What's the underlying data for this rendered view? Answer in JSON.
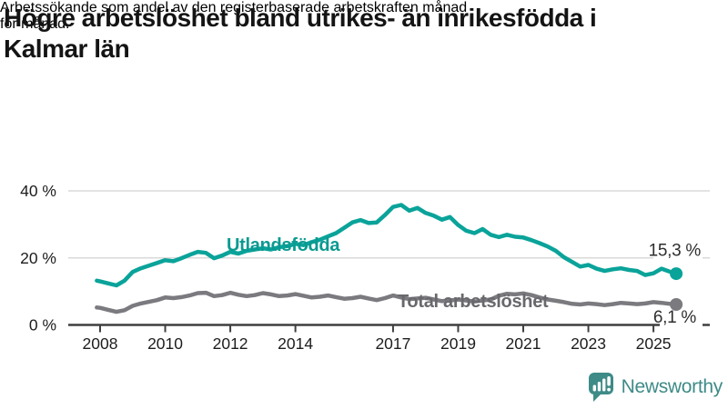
{
  "header": {
    "title_line1": "Högre arbetslöshet bland utrikes- än inrikesfödda i",
    "title_line2": "Kalmar län",
    "subtitle_line1": "Arbetssökande som andel av den registerbaserade arbetskraften månad",
    "subtitle_line2": "för månad."
  },
  "chart_data": {
    "type": "line",
    "title": "Högre arbetslöshet bland utrikes- än inrikesfödda i Kalmar län",
    "subtitle": "Arbetssökande som andel av den registerbaserade arbetskraften månad för månad.",
    "x_unit": "decimal_year",
    "xlim": [
      2007.9,
      2025.9
    ],
    "ylim": [
      0,
      40
    ],
    "grid": "horizontal",
    "legend_position": "inline-labels",
    "y_ticks": [
      0,
      20,
      40
    ],
    "y_tick_labels": [
      "0 %",
      "20 %",
      "40 %"
    ],
    "x_ticks": [
      2008,
      2010,
      2012,
      2014,
      2017,
      2019,
      2021,
      2023,
      2025
    ],
    "x_tick_labels": [
      "2008",
      "2010",
      "2012",
      "2014",
      "2017",
      "2019",
      "2021",
      "2023",
      "2025"
    ],
    "x": [
      2007.9,
      2008,
      2008.25,
      2008.5,
      2008.75,
      2009,
      2009.25,
      2009.5,
      2009.75,
      2010,
      2010.25,
      2010.5,
      2010.75,
      2011,
      2011.25,
      2011.5,
      2011.75,
      2012,
      2012.25,
      2012.5,
      2012.75,
      2013,
      2013.25,
      2013.5,
      2013.75,
      2014,
      2014.25,
      2014.5,
      2014.75,
      2015,
      2015.25,
      2015.5,
      2015.75,
      2016,
      2016.25,
      2016.5,
      2016.75,
      2017,
      2017.25,
      2017.5,
      2017.75,
      2018,
      2018.25,
      2018.5,
      2018.75,
      2019,
      2019.25,
      2019.5,
      2019.75,
      2020,
      2020.25,
      2020.5,
      2020.75,
      2021,
      2021.25,
      2021.5,
      2021.75,
      2022,
      2022.25,
      2022.5,
      2022.75,
      2023,
      2023.25,
      2023.5,
      2023.75,
      2024,
      2024.25,
      2024.5,
      2024.75,
      2025,
      2025.25,
      2025.5,
      2025.7
    ],
    "series": [
      {
        "name": "Utlandsfödda",
        "color": "#0aa39a",
        "label_color": "#0a9a91",
        "end_label": "15,3 %",
        "end_value": 15.3,
        "values": [
          13.2,
          13.0,
          12.4,
          11.8,
          13.2,
          15.8,
          16.9,
          17.7,
          18.5,
          19.3,
          19.0,
          19.9,
          20.9,
          21.8,
          21.5,
          19.9,
          20.7,
          21.8,
          21.3,
          22.1,
          22.5,
          22.9,
          22.5,
          23.2,
          23.5,
          24.2,
          23.8,
          24.7,
          25.4,
          26.4,
          27.4,
          29.0,
          30.6,
          31.3,
          30.4,
          30.6,
          32.8,
          35.2,
          35.8,
          34.1,
          34.9,
          33.4,
          32.6,
          31.4,
          32.2,
          29.8,
          28.1,
          27.4,
          28.6,
          26.9,
          26.2,
          26.9,
          26.3,
          26.1,
          25.3,
          24.4,
          23.4,
          22.1,
          20.2,
          18.8,
          17.4,
          17.9,
          16.8,
          16.1,
          16.6,
          16.9,
          16.4,
          16.1,
          14.9,
          15.4,
          16.8,
          15.9,
          15.3
        ]
      },
      {
        "name": "Total arbetslöshet",
        "color": "#7a7a7f",
        "label_color": "#68686d",
        "end_label": "6,1 %",
        "end_value": 6.1,
        "values": [
          5.2,
          5.1,
          4.5,
          3.9,
          4.4,
          5.7,
          6.4,
          6.9,
          7.4,
          8.2,
          8.0,
          8.3,
          8.8,
          9.5,
          9.6,
          8.6,
          8.9,
          9.6,
          9.0,
          8.6,
          8.9,
          9.5,
          9.1,
          8.6,
          8.8,
          9.2,
          8.7,
          8.2,
          8.4,
          8.8,
          8.3,
          7.8,
          8.0,
          8.4,
          7.9,
          7.4,
          8.0,
          8.8,
          8.2,
          7.7,
          7.9,
          8.1,
          7.6,
          7.1,
          7.3,
          7.6,
          7.3,
          7.0,
          7.3,
          7.6,
          8.7,
          9.3,
          9.1,
          9.4,
          8.9,
          8.2,
          7.6,
          7.2,
          6.8,
          6.3,
          6.1,
          6.4,
          6.2,
          5.9,
          6.2,
          6.6,
          6.4,
          6.2,
          6.4,
          6.8,
          6.6,
          6.3,
          6.1
        ]
      }
    ]
  },
  "colors": {
    "accent_teal": "#0aa39a",
    "series_gray": "#7a7a7f",
    "grid": "#dadada",
    "axis": "#3f3f3f",
    "value_label": "#2e2e2e",
    "tick_label": "#1d1d1d",
    "logo_teal": "#3e8b87"
  },
  "footer": {
    "brand": "Newsworthy"
  }
}
